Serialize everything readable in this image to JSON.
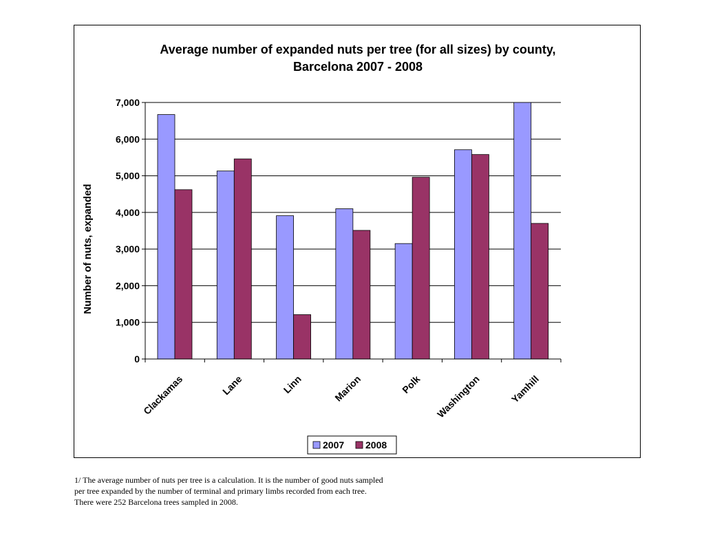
{
  "chart_data": {
    "type": "bar",
    "title_lines": [
      "Average number of expanded nuts per tree (for all sizes) by county,",
      "Barcelona 2007 - 2008"
    ],
    "xlabel": "",
    "ylabel": "Number of nuts, expanded",
    "categories": [
      "Clackamas",
      "Lane",
      "Linn",
      "Marion",
      "Polk",
      "Washington",
      "Yamhill"
    ],
    "series": [
      {
        "name": "2007",
        "color": "#9999ff",
        "values": [
          6670,
          5130,
          3910,
          4100,
          3150,
          5710,
          7050
        ]
      },
      {
        "name": "2008",
        "color": "#993366",
        "values": [
          4620,
          5460,
          1210,
          3510,
          4960,
          5580,
          3700
        ]
      }
    ],
    "ylim": [
      0,
      7000
    ],
    "yticks": [
      0,
      1000,
      2000,
      3000,
      4000,
      5000,
      6000,
      7000
    ],
    "ytick_labels": [
      "0",
      "1,000",
      "2,000",
      "3,000",
      "4,000",
      "5,000",
      "6,000",
      "7,000"
    ],
    "grid": true,
    "legend_position": "bottom"
  },
  "footnote": [
    "1/ The average number of nuts per tree is a calculation. It is the number of good nuts sampled",
    "per tree expanded by the number of terminal and primary limbs recorded from each tree.",
    "There were 252 Barcelona trees sampled in 2008."
  ]
}
